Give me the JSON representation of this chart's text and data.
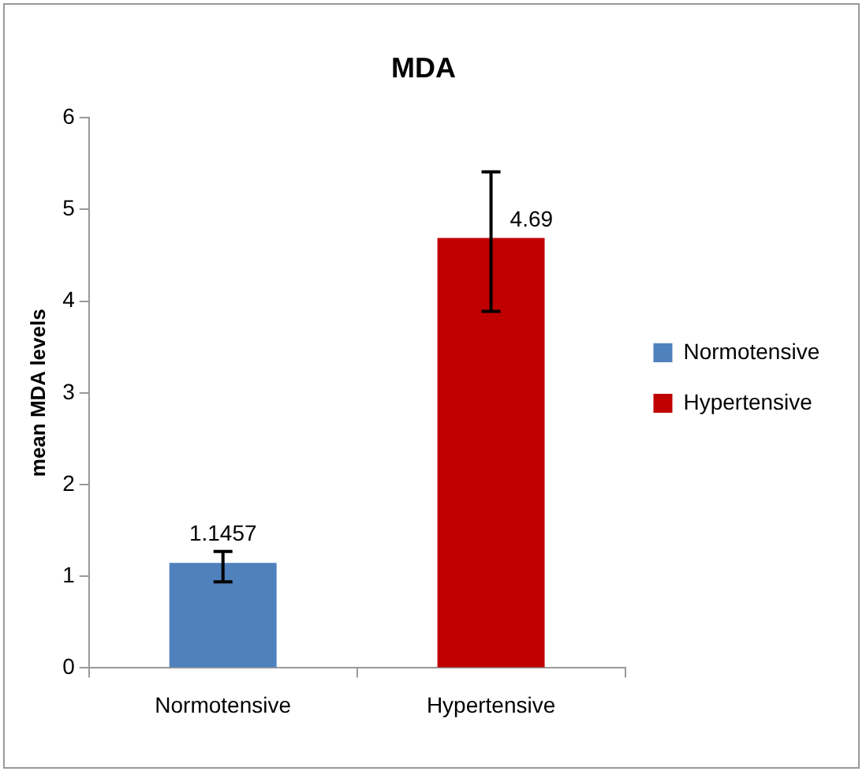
{
  "chart_data": {
    "type": "bar",
    "title": "MDA",
    "ylabel": "mean MDA levels",
    "categories": [
      "Normotensive",
      "Hypertensive"
    ],
    "series": [
      {
        "name": "Normotensive",
        "color": "#4f81bd",
        "values": [
          1.1457,
          null
        ],
        "errors": [
          [
            0.94,
            1.27
          ],
          null
        ]
      },
      {
        "name": "Hypertensive",
        "color": "#c00000",
        "values": [
          null,
          4.69
        ],
        "errors": [
          null,
          [
            3.89,
            5.41
          ]
        ]
      }
    ],
    "ylim": [
      0,
      6
    ],
    "yticks": [
      0,
      1,
      2,
      3,
      4,
      5,
      6
    ],
    "data_labels": true,
    "grid": false,
    "legend": "right"
  }
}
